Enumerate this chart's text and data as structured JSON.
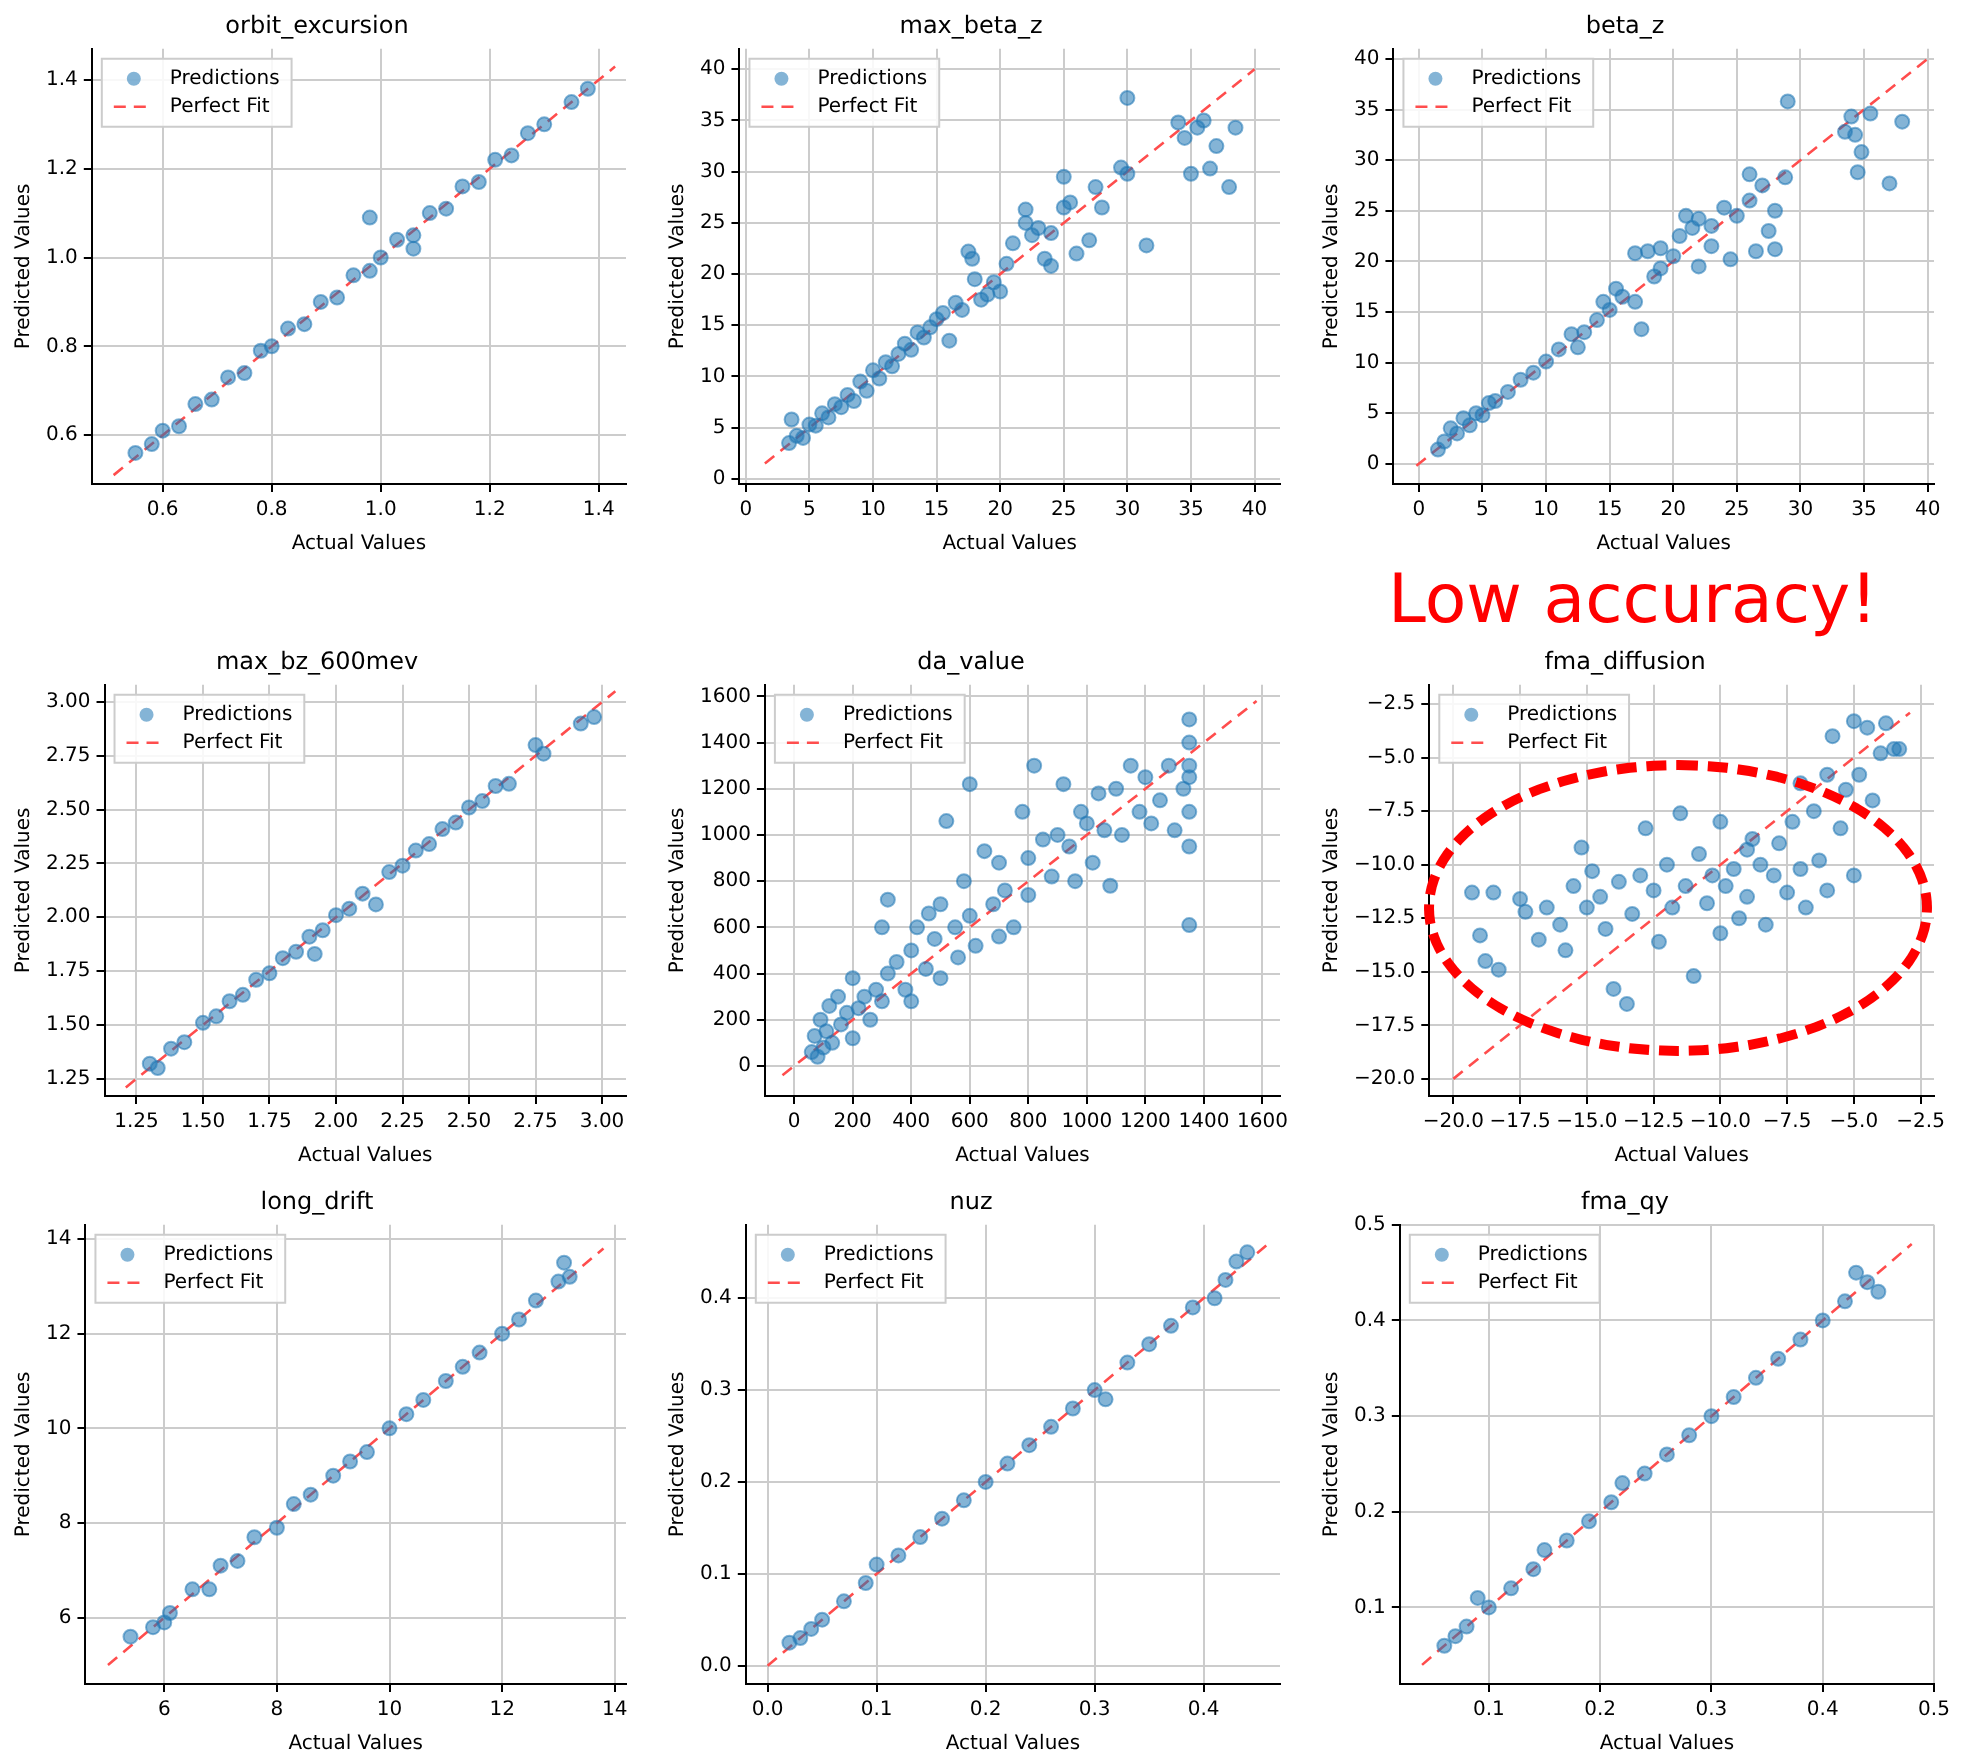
{
  "chart_data": [
    {
      "type": "scatter",
      "title": "orbit_excursion",
      "xlabel": "Actual Values",
      "ylabel": "Predicted Values",
      "xlim": [
        0.47,
        1.45
      ],
      "ylim": [
        0.49,
        1.47
      ],
      "xticks": [
        0.6,
        0.8,
        {
          "value": 1,
          "label": "1.0"
        },
        1.2,
        1.4
      ],
      "yticks": [
        0.6,
        0.8,
        {
          "value": 1,
          "label": "1.0"
        },
        1.2,
        1.4
      ],
      "grid": true,
      "legend": "top left",
      "marker": "circle",
      "series": [
        {
          "name": "Predictions",
          "type": "scatter",
          "color": "#1f77b4",
          "x": [
            0.55,
            0.58,
            0.6,
            0.63,
            0.66,
            0.69,
            0.72,
            0.75,
            0.78,
            0.8,
            0.83,
            0.86,
            0.89,
            0.92,
            0.95,
            0.98,
            0.98,
            1.0,
            1.03,
            1.06,
            1.06,
            1.09,
            1.12,
            1.15,
            1.18,
            1.21,
            1.24,
            1.27,
            1.3,
            1.35,
            1.38
          ],
          "values": [
            0.56,
            0.58,
            0.61,
            0.62,
            0.67,
            0.68,
            0.73,
            0.74,
            0.79,
            0.8,
            0.84,
            0.85,
            0.9,
            0.91,
            0.96,
            0.97,
            1.09,
            1.0,
            1.04,
            1.05,
            1.02,
            1.1,
            1.11,
            1.16,
            1.17,
            1.22,
            1.23,
            1.28,
            1.3,
            1.35,
            1.38
          ]
        },
        {
          "name": "Perfect Fit",
          "type": "line",
          "color": "#ff4d4d",
          "line_style": "dashed",
          "marker": "none",
          "x": [
            0.51,
            1.43
          ],
          "values": [
            0.51,
            1.43
          ]
        }
      ]
    },
    {
      "type": "scatter",
      "title": "max_beta_z",
      "xlabel": "Actual Values",
      "ylabel": "Predicted Values",
      "xlim": [
        -0.5,
        42
      ],
      "ylim": [
        -0.5,
        42
      ],
      "xticks": [
        0,
        5,
        10,
        15,
        20,
        25,
        30,
        35,
        40
      ],
      "yticks": [
        0,
        5,
        10,
        15,
        20,
        25,
        30,
        35,
        40
      ],
      "grid": true,
      "legend": "top left",
      "marker": "circle",
      "series": [
        {
          "name": "Predictions",
          "type": "scatter",
          "color": "#1f77b4",
          "x": [
            3.4,
            3.6,
            4,
            4.5,
            5,
            5.5,
            6,
            6.5,
            7,
            7.5,
            8,
            8.5,
            9,
            9.5,
            10,
            10.5,
            11,
            11.5,
            12,
            12.5,
            13,
            13.5,
            14,
            14.5,
            15,
            15.5,
            16,
            16.5,
            17,
            17.5,
            17.8,
            18,
            18.5,
            19,
            19.5,
            20,
            20.5,
            21,
            22,
            22,
            22.5,
            23,
            23.5,
            24,
            24,
            25,
            25,
            25.5,
            26,
            27,
            27.5,
            28,
            29.5,
            30,
            30,
            31.5,
            34,
            34.5,
            35,
            35.5,
            36,
            36.5,
            37,
            38,
            38.5
          ],
          "values": [
            3.5,
            5.8,
            4.2,
            4,
            5.3,
            5.2,
            6.4,
            6,
            7.3,
            7,
            8.2,
            7.6,
            9.5,
            8.6,
            10.6,
            9.8,
            11.4,
            11,
            12.2,
            13.2,
            12.6,
            14.3,
            13.8,
            14.8,
            15.6,
            16.2,
            13.5,
            17.2,
            16.5,
            22.2,
            21.5,
            19.5,
            17.5,
            18,
            19.2,
            18.3,
            21,
            23,
            26.3,
            25,
            23.8,
            24.5,
            21.5,
            20.8,
            24,
            29.5,
            26.5,
            27,
            22,
            23.3,
            28.5,
            26.5,
            30.4,
            37.2,
            29.8,
            22.8,
            34.8,
            33.3,
            29.8,
            34.3,
            35,
            30.3,
            32.5,
            28.5,
            34.3
          ]
        },
        {
          "name": "Perfect Fit",
          "type": "line",
          "color": "#ff4d4d",
          "line_style": "dashed",
          "marker": "none",
          "x": [
            1.5,
            40
          ],
          "values": [
            1.5,
            40
          ]
        }
      ]
    },
    {
      "type": "scatter",
      "title": "beta_z",
      "xlabel": "Actual Values",
      "ylabel": "Predicted Values",
      "xlim": [
        -2,
        40.5
      ],
      "ylim": [
        -2,
        41
      ],
      "xticks": [
        0,
        5,
        10,
        15,
        20,
        25,
        30,
        35,
        40
      ],
      "yticks": [
        0,
        5,
        10,
        15,
        20,
        25,
        30,
        35,
        40
      ],
      "grid": true,
      "legend": "top left",
      "marker": "circle",
      "series": [
        {
          "name": "Predictions",
          "type": "scatter",
          "color": "#1f77b4",
          "x": [
            1.5,
            2,
            2.5,
            3,
            3.5,
            4,
            4.5,
            5,
            5.5,
            6,
            7,
            8,
            9,
            10,
            11,
            12,
            12.5,
            13,
            14,
            14.5,
            15,
            15.5,
            16,
            17,
            17,
            17.5,
            18,
            18.5,
            19,
            19,
            20,
            20.5,
            21,
            21.5,
            22,
            22,
            23,
            23,
            24,
            24.5,
            25,
            26,
            26,
            26.5,
            27,
            27.5,
            28,
            28,
            29,
            28.8,
            34,
            33.5,
            34.3,
            34.5,
            34.8,
            35.5,
            37,
            38
          ],
          "values": [
            1.4,
            2.2,
            3.5,
            3,
            4.5,
            3.8,
            5,
            4.8,
            6,
            6.2,
            7.1,
            8.3,
            9,
            10.1,
            11.3,
            12.8,
            11.5,
            13,
            14.2,
            16,
            15.2,
            17.3,
            16.5,
            20.8,
            16,
            13.3,
            21,
            18.5,
            21.3,
            19.3,
            20.5,
            22.5,
            24.5,
            23.3,
            24.2,
            19.5,
            23.5,
            21.5,
            25.3,
            20.2,
            24.5,
            28.6,
            26,
            21,
            27.5,
            23,
            25,
            21.2,
            35.8,
            28.3,
            34.3,
            32.8,
            32.5,
            28.8,
            30.8,
            34.6,
            27.7,
            33.8
          ]
        },
        {
          "name": "Perfect Fit",
          "type": "line",
          "color": "#ff4d4d",
          "line_style": "dashed",
          "marker": "none",
          "x": [
            -0.2,
            40
          ],
          "values": [
            -0.2,
            40
          ]
        }
      ]
    },
    {
      "type": "scatter",
      "title": "max_bz_600mev",
      "xlabel": "Actual Values",
      "ylabel": "Predicted Values",
      "xlim": [
        1.13,
        3.09
      ],
      "ylim": [
        1.17,
        3.08
      ],
      "xticks": [
        1.25,
        {
          "value": 1.5,
          "label": "1.50"
        },
        1.75,
        {
          "value": 2,
          "label": "2.00"
        },
        2.25,
        {
          "value": 2.5,
          "label": "2.50"
        },
        2.75,
        {
          "value": 3,
          "label": "3.00"
        }
      ],
      "yticks": [
        1.25,
        {
          "value": 1.5,
          "label": "1.50"
        },
        1.75,
        {
          "value": 2,
          "label": "2.00"
        },
        2.25,
        {
          "value": 2.5,
          "label": "2.50"
        },
        2.75,
        {
          "value": 3,
          "label": "3.00"
        }
      ],
      "grid": true,
      "legend": "top left",
      "marker": "circle",
      "series": [
        {
          "name": "Predictions",
          "type": "scatter",
          "color": "#1f77b4",
          "x": [
            1.3,
            1.33,
            1.38,
            1.43,
            1.5,
            1.55,
            1.6,
            1.65,
            1.7,
            1.75,
            1.8,
            1.85,
            1.9,
            1.92,
            1.95,
            2.0,
            2.05,
            2.1,
            2.15,
            2.2,
            2.25,
            2.3,
            2.35,
            2.4,
            2.45,
            2.5,
            2.55,
            2.6,
            2.65,
            2.75,
            2.78,
            2.92,
            2.97
          ],
          "values": [
            1.32,
            1.3,
            1.39,
            1.42,
            1.51,
            1.54,
            1.61,
            1.64,
            1.71,
            1.74,
            1.81,
            1.84,
            1.91,
            1.83,
            1.94,
            2.01,
            2.04,
            2.11,
            2.06,
            2.21,
            2.24,
            2.31,
            2.34,
            2.41,
            2.44,
            2.51,
            2.54,
            2.61,
            2.62,
            2.8,
            2.76,
            2.9,
            2.93
          ]
        },
        {
          "name": "Perfect Fit",
          "type": "line",
          "color": "#ff4d4d",
          "line_style": "dashed",
          "marker": "none",
          "x": [
            1.21,
            3.05
          ],
          "values": [
            1.21,
            3.05
          ]
        }
      ]
    },
    {
      "type": "scatter",
      "title": "da_value",
      "xlabel": "Actual Values",
      "ylabel": "Predicted Values",
      "xlim": [
        -100,
        1660
      ],
      "ylim": [
        -130,
        1650
      ],
      "xticks": [
        0,
        200,
        400,
        600,
        800,
        1000,
        1200,
        1400,
        1600
      ],
      "yticks": [
        0,
        200,
        400,
        600,
        800,
        1000,
        1200,
        1400,
        1600
      ],
      "grid": true,
      "legend": "top left",
      "marker": "circle",
      "series": [
        {
          "name": "Predictions",
          "type": "scatter",
          "color": "#1f77b4",
          "x": [
            60,
            70,
            80,
            90,
            100,
            110,
            120,
            130,
            150,
            160,
            180,
            200,
            200,
            220,
            240,
            260,
            280,
            300,
            300,
            320,
            320,
            350,
            380,
            400,
            400,
            420,
            450,
            460,
            480,
            500,
            500,
            520,
            550,
            560,
            580,
            600,
            600,
            620,
            650,
            680,
            700,
            700,
            720,
            750,
            780,
            800,
            800,
            820,
            850,
            880,
            900,
            920,
            940,
            960,
            980,
            1000,
            1020,
            1040,
            1060,
            1080,
            1100,
            1120,
            1150,
            1180,
            1200,
            1220,
            1250,
            1280,
            1300,
            1330,
            1350,
            1350,
            1350,
            1350,
            1350,
            1350,
            1350
          ],
          "values": [
            60,
            130,
            40,
            200,
            80,
            150,
            260,
            100,
            300,
            180,
            230,
            120,
            380,
            250,
            300,
            200,
            330,
            280,
            600,
            400,
            720,
            450,
            330,
            500,
            280,
            600,
            420,
            660,
            550,
            380,
            700,
            1060,
            600,
            470,
            800,
            650,
            1220,
            520,
            930,
            700,
            880,
            560,
            760,
            600,
            1100,
            900,
            740,
            1300,
            980,
            820,
            1000,
            1220,
            950,
            800,
            1100,
            1050,
            880,
            1180,
            1020,
            780,
            1200,
            1000,
            1300,
            1100,
            1250,
            1050,
            1150,
            1300,
            1020,
            1200,
            1500,
            1400,
            1250,
            1100,
            950,
            610,
            1300
          ]
        },
        {
          "name": "Perfect Fit",
          "type": "line",
          "color": "#ff4d4d",
          "line_style": "dashed",
          "marker": "none",
          "x": [
            -40,
            1580
          ],
          "values": [
            -40,
            1580
          ]
        }
      ]
    },
    {
      "type": "scatter",
      "title": "fma_diffusion",
      "xlabel": "Actual Values",
      "ylabel": "Predicted Values",
      "xlim": [
        -20.9,
        -2
      ],
      "ylim": [
        -20.8,
        -1.6
      ],
      "xticks": [
        {
          "value": -20,
          "label": "−20.0"
        },
        {
          "value": -17.5,
          "label": "−17.5"
        },
        {
          "value": -15,
          "label": "−15.0"
        },
        {
          "value": -12.5,
          "label": "−12.5"
        },
        {
          "value": -10,
          "label": "−10.0"
        },
        {
          "value": -7.5,
          "label": "−7.5"
        },
        {
          "value": -5,
          "label": "−5.0"
        },
        {
          "value": -2.5,
          "label": "−2.5"
        }
      ],
      "yticks": [
        {
          "value": -20,
          "label": "−20.0"
        },
        {
          "value": -17.5,
          "label": "−17.5"
        },
        {
          "value": -15,
          "label": "−15.0"
        },
        {
          "value": -12.5,
          "label": "−12.5"
        },
        {
          "value": -10,
          "label": "−10.0"
        },
        {
          "value": -7.5,
          "label": "−7.5"
        },
        {
          "value": -5,
          "label": "−5.0"
        },
        {
          "value": -2.5,
          "label": "−2.5"
        }
      ],
      "grid": true,
      "legend": "top left",
      "marker": "circle",
      "annotations": [
        "Low accuracy!"
      ],
      "series": [
        {
          "name": "Predictions",
          "type": "scatter",
          "color": "#1f77b4",
          "x": [
            -19.3,
            -19,
            -18.8,
            -18.5,
            -18.3,
            -17.5,
            -17.3,
            -16.8,
            -16.5,
            -16,
            -15.8,
            -15.5,
            -15.2,
            -15,
            -14.8,
            -14.5,
            -14.3,
            -14,
            -13.8,
            -13.5,
            -13.3,
            -13,
            -12.8,
            -12.5,
            -12.3,
            -12,
            -11.8,
            -11.5,
            -11.3,
            -11,
            -10.8,
            -10.5,
            -10.3,
            -10,
            -10,
            -9.8,
            -9.5,
            -9.3,
            -9,
            -9,
            -8.8,
            -8.5,
            -8.3,
            -8,
            -7.8,
            -7.5,
            -7.3,
            -7,
            -7,
            -6.8,
            -6.5,
            -6.3,
            -6,
            -6,
            -5.8,
            -5.5,
            -5.3,
            -5,
            -5,
            -4.8,
            -4.5,
            -4.3,
            -4,
            -3.8,
            -3.5,
            -3.3
          ],
          "values": [
            -11.3,
            -13.3,
            -14.5,
            -11.3,
            -14.9,
            -11.6,
            -12.2,
            -13.5,
            -12,
            -12.8,
            -14,
            -11,
            -9.2,
            -12,
            -10.3,
            -11.5,
            -13,
            -15.8,
            -10.8,
            -16.5,
            -12.3,
            -10.5,
            -8.3,
            -11.2,
            -13.6,
            -10,
            -12,
            -7.6,
            -11,
            -15.2,
            -9.5,
            -11.8,
            -10.5,
            -8,
            -13.2,
            -11,
            -10.2,
            -12.5,
            -9.3,
            -11.5,
            -8.8,
            -10,
            -12.8,
            -10.5,
            -9,
            -11.3,
            -8,
            -10.2,
            -6.2,
            -12,
            -7.5,
            -9.8,
            -5.8,
            -11.2,
            -4,
            -8.3,
            -6.5,
            -3.3,
            -10.5,
            -5.8,
            -3.6,
            -7,
            -4.8,
            -3.4,
            -4.6,
            -4.6
          ]
        },
        {
          "name": "Perfect Fit",
          "type": "line",
          "color": "#ff4d4d",
          "line_style": "dashed",
          "marker": "none",
          "x": [
            -20,
            -2.9
          ],
          "values": [
            -20,
            -2.9
          ]
        }
      ]
    },
    {
      "type": "scatter",
      "title": "long_drift",
      "xlabel": "Actual Values",
      "ylabel": "Predicted Values",
      "xlim": [
        4.6,
        14.2
      ],
      "ylim": [
        4.6,
        14.3
      ],
      "xticks": [
        6,
        8,
        10,
        12,
        14
      ],
      "yticks": [
        6,
        8,
        10,
        12,
        14
      ],
      "grid": true,
      "legend": "top left",
      "marker": "circle",
      "series": [
        {
          "name": "Predictions",
          "type": "scatter",
          "color": "#1f77b4",
          "x": [
            5.4,
            5.8,
            6,
            6.1,
            6.5,
            6.8,
            7,
            7.3,
            7.6,
            8,
            8.3,
            8.6,
            9,
            9.3,
            9.6,
            10,
            10.3,
            10.6,
            11,
            11.3,
            11.6,
            12,
            12.3,
            12.6,
            13,
            13.1,
            13.2
          ],
          "values": [
            5.6,
            5.8,
            5.9,
            6.1,
            6.6,
            6.6,
            7.1,
            7.2,
            7.7,
            7.9,
            8.4,
            8.6,
            9,
            9.3,
            9.5,
            10,
            10.3,
            10.6,
            11,
            11.3,
            11.6,
            12,
            12.3,
            12.7,
            13.1,
            13.5,
            13.2
          ]
        },
        {
          "name": "Perfect Fit",
          "type": "line",
          "color": "#ff4d4d",
          "line_style": "dashed",
          "marker": "none",
          "x": [
            5,
            13.8
          ],
          "values": [
            5,
            13.8
          ]
        }
      ]
    },
    {
      "type": "scatter",
      "title": "nuz",
      "xlabel": "Actual Values",
      "ylabel": "Predicted Values",
      "xlim": [
        -0.02,
        0.47
      ],
      "ylim": [
        -0.02,
        0.48
      ],
      "xticks": [
        {
          "value": 0,
          "label": "0.0"
        },
        0.1,
        0.2,
        0.3,
        0.4
      ],
      "yticks": [
        {
          "value": 0,
          "label": "0.0"
        },
        0.1,
        0.2,
        0.3,
        0.4
      ],
      "grid": true,
      "legend": "top left",
      "marker": "circle",
      "series": [
        {
          "name": "Predictions",
          "type": "scatter",
          "color": "#1f77b4",
          "x": [
            0.02,
            0.03,
            0.04,
            0.05,
            0.07,
            0.09,
            0.1,
            0.12,
            0.14,
            0.16,
            0.18,
            0.2,
            0.22,
            0.24,
            0.26,
            0.28,
            0.3,
            0.31,
            0.33,
            0.35,
            0.37,
            0.39,
            0.41,
            0.42,
            0.43,
            0.44
          ],
          "values": [
            0.025,
            0.03,
            0.04,
            0.05,
            0.07,
            0.09,
            0.11,
            0.12,
            0.14,
            0.16,
            0.18,
            0.2,
            0.22,
            0.24,
            0.26,
            0.28,
            0.3,
            0.29,
            0.33,
            0.35,
            0.37,
            0.39,
            0.4,
            0.42,
            0.44,
            0.45
          ]
        },
        {
          "name": "Perfect Fit",
          "type": "line",
          "color": "#ff4d4d",
          "line_style": "dashed",
          "marker": "none",
          "x": [
            0,
            0.46
          ],
          "values": [
            0,
            0.46
          ]
        }
      ]
    },
    {
      "type": "scatter",
      "title": "fma_qy",
      "xlabel": "Actual Values",
      "ylabel": "Predicted Values",
      "xlim": [
        0.02,
        0.5
      ],
      "ylim": [
        0.02,
        0.5
      ],
      "xticks": [
        0.1,
        0.2,
        0.3,
        0.4,
        0.5
      ],
      "yticks": [
        0.1,
        0.2,
        0.3,
        0.4,
        0.5
      ],
      "grid": true,
      "legend": "top left",
      "marker": "circle",
      "series": [
        {
          "name": "Predictions",
          "type": "scatter",
          "color": "#1f77b4",
          "x": [
            0.06,
            0.07,
            0.08,
            0.09,
            0.1,
            0.12,
            0.14,
            0.15,
            0.17,
            0.19,
            0.21,
            0.22,
            0.24,
            0.26,
            0.28,
            0.3,
            0.32,
            0.34,
            0.36,
            0.38,
            0.4,
            0.42,
            0.43,
            0.44,
            0.45
          ],
          "values": [
            0.06,
            0.07,
            0.08,
            0.11,
            0.1,
            0.12,
            0.14,
            0.16,
            0.17,
            0.19,
            0.21,
            0.23,
            0.24,
            0.26,
            0.28,
            0.3,
            0.32,
            0.34,
            0.36,
            0.38,
            0.4,
            0.42,
            0.45,
            0.44,
            0.43
          ]
        },
        {
          "name": "Perfect Fit",
          "type": "line",
          "color": "#ff4d4d",
          "line_style": "dashed",
          "marker": "none",
          "x": [
            0.04,
            0.48
          ],
          "values": [
            0.04,
            0.48
          ]
        }
      ]
    }
  ]
}
